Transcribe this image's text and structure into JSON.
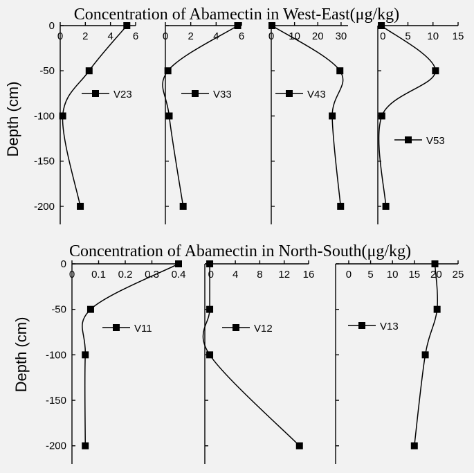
{
  "chart_data": [
    {
      "title": "Concentration of Abamectin in West-East(μg/kg)",
      "ylabel": "Depth (cm)",
      "panels": [
        {
          "type": "line",
          "series": "V23",
          "xlim": [
            0,
            6
          ],
          "xticks": [
            0,
            2,
            4,
            6
          ],
          "ylim": [
            -220,
            0
          ],
          "yticks": [
            0,
            -50,
            -100,
            -150,
            -200
          ],
          "points": [
            {
              "x": 5.3,
              "y": 0
            },
            {
              "x": 2.3,
              "y": -50
            },
            {
              "x": 0.2,
              "y": -100
            },
            {
              "x": 1.6,
              "y": -200
            }
          ]
        },
        {
          "type": "line",
          "series": "V33",
          "xlim": [
            0,
            6
          ],
          "xticks": [
            0,
            2,
            4,
            6
          ],
          "ylim": [
            -220,
            0
          ],
          "yticks": [],
          "points": [
            {
              "x": 5.7,
              "y": 0
            },
            {
              "x": 0.2,
              "y": -50
            },
            {
              "x": 0.3,
              "y": -100
            },
            {
              "x": 1.4,
              "y": -200
            }
          ]
        },
        {
          "type": "line",
          "series": "V43",
          "xlim": [
            0,
            33
          ],
          "xticks": [
            0,
            10,
            20,
            30
          ],
          "ylim": [
            -220,
            0
          ],
          "yticks": [],
          "points": [
            {
              "x": 0.3,
              "y": 0
            },
            {
              "x": 29.5,
              "y": -50
            },
            {
              "x": 26.2,
              "y": -100
            },
            {
              "x": 29.8,
              "y": -200
            }
          ]
        },
        {
          "type": "line",
          "series": "V53",
          "xlim": [
            -1,
            15
          ],
          "xticks": [
            0,
            5,
            10,
            15
          ],
          "ylim": [
            -220,
            0
          ],
          "yticks": [],
          "points": [
            {
              "x": -0.3,
              "y": 0
            },
            {
              "x": 10.5,
              "y": -50
            },
            {
              "x": -0.2,
              "y": -100
            },
            {
              "x": 0.6,
              "y": -200
            }
          ]
        }
      ]
    },
    {
      "title": "Concentration of Abamectin in North-South(μg/kg)",
      "ylabel": "Depth (cm)",
      "panels": [
        {
          "type": "line",
          "series": "V11",
          "xlim": [
            0,
            0.4
          ],
          "xticks": [
            0,
            0.1,
            0.2,
            0.3,
            0.4
          ],
          "ylim": [
            -220,
            0
          ],
          "yticks": [
            0,
            -50,
            -100,
            -150,
            -200
          ],
          "points": [
            {
              "x": 0.4,
              "y": 0
            },
            {
              "x": 0.07,
              "y": -50
            },
            {
              "x": 0.05,
              "y": -100
            },
            {
              "x": 0.05,
              "y": -200
            }
          ]
        },
        {
          "type": "line",
          "series": "V12",
          "xlim": [
            -1,
            16
          ],
          "xticks": [
            0,
            4,
            8,
            12,
            16
          ],
          "ylim": [
            -220,
            0
          ],
          "yticks": [],
          "points": [
            {
              "x": -0.2,
              "y": 0
            },
            {
              "x": -0.2,
              "y": -50
            },
            {
              "x": -0.2,
              "y": -100
            },
            {
              "x": 14.5,
              "y": -200
            }
          ]
        },
        {
          "type": "line",
          "series": "V13",
          "xlim": [
            -3,
            25
          ],
          "xticks": [
            0,
            5,
            10,
            15,
            20,
            25
          ],
          "ylim": [
            -220,
            0
          ],
          "yticks": [],
          "points": [
            {
              "x": 19.7,
              "y": 0
            },
            {
              "x": 20.2,
              "y": -50
            },
            {
              "x": 17.5,
              "y": -100
            },
            {
              "x": 15,
              "y": -200
            }
          ]
        }
      ]
    }
  ]
}
